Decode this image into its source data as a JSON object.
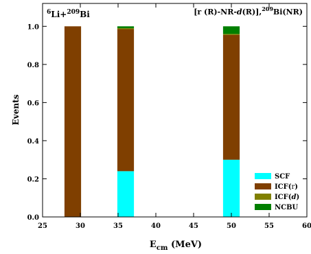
{
  "chart_data": {
    "type": "bar",
    "stacked": true,
    "xlabel": {
      "main": "E",
      "sub": "cm",
      "rest": " (MeV)"
    },
    "ylabel": "Events",
    "xlim": [
      25,
      60
    ],
    "ylim": [
      0,
      1.12
    ],
    "xticks": [
      25,
      30,
      35,
      40,
      45,
      50,
      55,
      60
    ],
    "yticks": [
      0.0,
      0.2,
      0.4,
      0.6,
      0.8,
      1.0
    ],
    "ytick_labels": [
      "0.0",
      "0.2",
      "0.4",
      "0.6",
      "0.8",
      "1.0"
    ],
    "bar_width": 2.2,
    "x": [
      29,
      36,
      50
    ],
    "series": [
      {
        "name": "SCF",
        "color": "#00ffff",
        "values": [
          0.0,
          0.24,
          0.3
        ]
      },
      {
        "name": "ICF(r)",
        "color": "#7f3f00",
        "values": [
          1.0,
          0.745,
          0.655
        ]
      },
      {
        "name": "ICF(d)",
        "color": "#808000",
        "values": [
          0.0,
          0.005,
          0.005
        ]
      },
      {
        "name": "NCBU",
        "color": "#007f00",
        "values": [
          0.0,
          0.01,
          0.04
        ]
      }
    ],
    "legend_position": "bottom-right",
    "annotations": {
      "left": {
        "sup1": "6",
        "t1": "Li+",
        "sup2": "209",
        "t2": "Bi"
      },
      "right": {
        "t1": "[r (R)-NR-",
        "t2": "d",
        "t3": "(R)],",
        "sup": "209",
        "t4": "Bi(NR)"
      }
    }
  }
}
